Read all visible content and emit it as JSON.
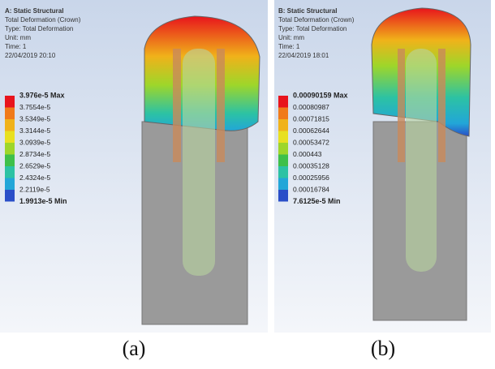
{
  "panels": [
    {
      "header": [
        "A: Static Structural",
        "Total Deformation (Crown)",
        "Type: Total Deformation",
        "Unit: mm",
        "Time: 1",
        "22/04/2019 20:10"
      ],
      "legend": [
        "3.976e-5 Max",
        "3.7554e-5",
        "3.5349e-5",
        "3.3144e-5",
        "3.0939e-5",
        "2.8734e-5",
        "2.6529e-5",
        "2.4324e-5",
        "2.2119e-5",
        "1.9913e-5 Min"
      ],
      "caption": "(a)"
    },
    {
      "header": [
        "B: Static Structural",
        "Total Deformation (Crown)",
        "Type: Total Deformation",
        "Unit: mm",
        "Time: 1",
        "22/04/2019 18:01"
      ],
      "legend": [
        "0.00090159 Max",
        "0.00080987",
        "0.00071815",
        "0.00062644",
        "0.00053472",
        "0.000443",
        "0.00035128",
        "0.00025956",
        "0.00016784",
        "7.6125e-5 Min"
      ],
      "caption": "(b)"
    }
  ],
  "legend_colors": [
    "#e8141c",
    "#f07a1a",
    "#f0b21a",
    "#e8e020",
    "#9ed62a",
    "#3ec04a",
    "#2cc2a4",
    "#22a6d8",
    "#2a4ec8"
  ]
}
